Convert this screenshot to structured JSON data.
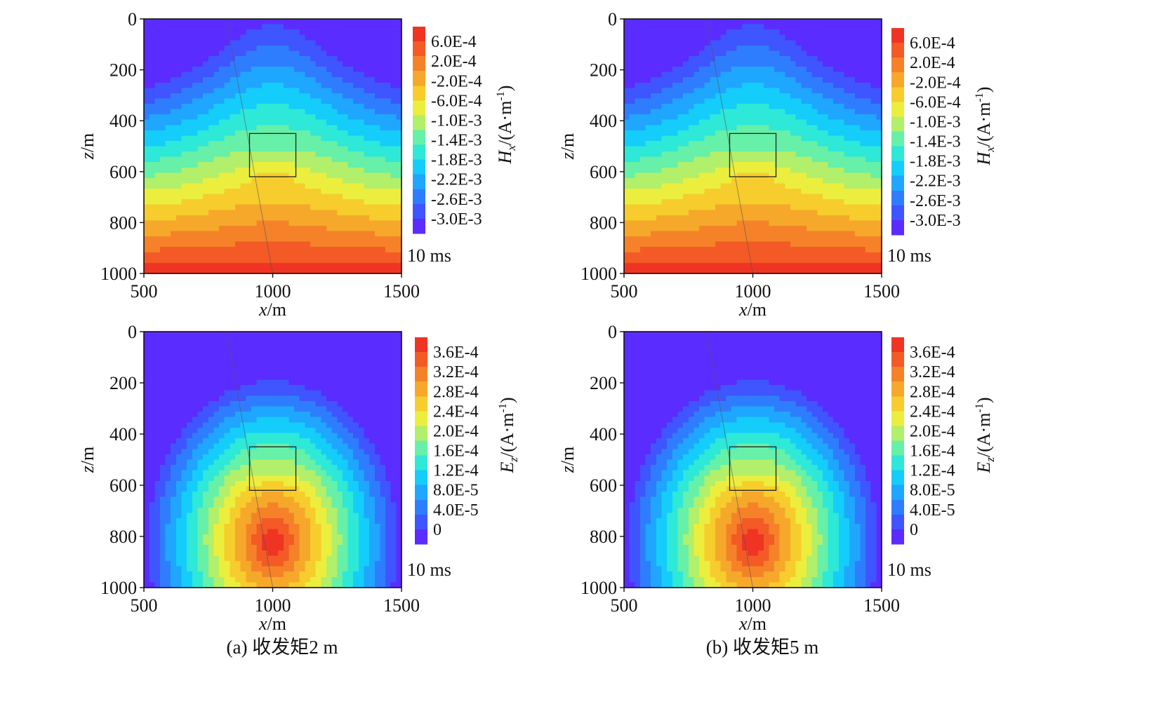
{
  "captions": [
    "(a) 收发矩2 m",
    "(b) 收发矩5 m"
  ],
  "chart_data": [
    {
      "type": "heatmap",
      "panel": "a-top",
      "component": "Hx",
      "field": "hx",
      "xlabel_var": "x",
      "xlabel_unit": "/m",
      "ylabel_var": "z",
      "ylabel_unit": "/m",
      "xlim": [
        500,
        1500
      ],
      "ylim": [
        0,
        1000
      ],
      "y_inverted": true,
      "xticks": [
        "500",
        "1000",
        "1500"
      ],
      "yticks": [
        "0",
        "200",
        "400",
        "600",
        "800",
        "1000"
      ],
      "time_label": "10 ms",
      "colorbar_label_var": "H",
      "colorbar_label_sub": "x",
      "colorbar_label_unit": "/(A·m",
      "colorbar_label_exp": "-1",
      "colorbar_label_close": ")",
      "colorbar_ticks": [
        "6.0E-4",
        "2.0E-4",
        "-2.0E-4",
        "-6.0E-4",
        "-1.0E-3",
        "-1.4E-3",
        "-1.8E-3",
        "-2.2E-3",
        "-2.6E-3",
        "-3.0E-3"
      ],
      "value_range": [
        -0.003,
        0.0006
      ],
      "anomaly_box": {
        "x": [
          910,
          1090
        ],
        "z": [
          450,
          620
        ]
      },
      "overlay_line": {
        "x1": 820,
        "z1": 0,
        "x2": 1000,
        "z2": 1000
      }
    },
    {
      "type": "heatmap",
      "panel": "b-top",
      "component": "Hx",
      "field": "hx",
      "xlabel_var": "x",
      "xlabel_unit": "/m",
      "ylabel_var": "z",
      "ylabel_unit": "/m",
      "xlim": [
        500,
        1500
      ],
      "ylim": [
        0,
        1000
      ],
      "y_inverted": true,
      "xticks": [
        "500",
        "1000",
        "1500"
      ],
      "yticks": [
        "0",
        "200",
        "400",
        "600",
        "800",
        "1000"
      ],
      "time_label": "10 ms",
      "colorbar_label_var": "H",
      "colorbar_label_sub": "x",
      "colorbar_label_unit": "/(A·m",
      "colorbar_label_exp": "-1",
      "colorbar_label_close": ")",
      "colorbar_ticks": [
        "6.0E-4",
        "2.0E-4",
        "-2.0E-4",
        "-6.0E-4",
        "-1.0E-3",
        "-1.4E-3",
        "-1.8E-3",
        "-2.2E-3",
        "-2.6E-3",
        "-3.0E-3"
      ],
      "value_range": [
        -0.003,
        0.0006
      ],
      "anomaly_box": {
        "x": [
          910,
          1090
        ],
        "z": [
          450,
          620
        ]
      },
      "overlay_line": {
        "x1": 820,
        "z1": 0,
        "x2": 1000,
        "z2": 1000
      }
    },
    {
      "type": "heatmap",
      "panel": "a-bottom",
      "component": "Ez",
      "field": "ez",
      "xlabel_var": "x",
      "xlabel_unit": "/m",
      "ylabel_var": "z",
      "ylabel_unit": "/m",
      "xlim": [
        500,
        1500
      ],
      "ylim": [
        0,
        1000
      ],
      "y_inverted": true,
      "xticks": [
        "500",
        "1000",
        "1500"
      ],
      "yticks": [
        "0",
        "200",
        "400",
        "600",
        "800",
        "1000"
      ],
      "time_label": "10 ms",
      "colorbar_label_var": "E",
      "colorbar_label_sub": "z",
      "colorbar_label_unit": "/(A·m",
      "colorbar_label_exp": "-1",
      "colorbar_label_close": ")",
      "colorbar_ticks": [
        "3.6E-4",
        "3.2E-4",
        "2.8E-4",
        "2.4E-4",
        "2.0E-4",
        "1.6E-4",
        "1.2E-4",
        "8.0E-5",
        "4.0E-5",
        "0"
      ],
      "value_range": [
        0,
        0.0004
      ],
      "anomaly_box": {
        "x": [
          910,
          1090
        ],
        "z": [
          450,
          620
        ]
      },
      "overlay_line": {
        "x1": 820,
        "z1": 0,
        "x2": 1000,
        "z2": 1000
      }
    },
    {
      "type": "heatmap",
      "panel": "b-bottom",
      "component": "Ez",
      "field": "ez",
      "xlabel_var": "x",
      "xlabel_unit": "/m",
      "ylabel_var": "z",
      "ylabel_unit": "/m",
      "xlim": [
        500,
        1500
      ],
      "ylim": [
        0,
        1000
      ],
      "y_inverted": true,
      "xticks": [
        "500",
        "1000",
        "1500"
      ],
      "yticks": [
        "0",
        "200",
        "400",
        "600",
        "800",
        "1000"
      ],
      "time_label": "10 ms",
      "colorbar_label_var": "E",
      "colorbar_label_sub": "z",
      "colorbar_label_unit": "/(A·m",
      "colorbar_label_exp": "-1",
      "colorbar_label_close": ")",
      "colorbar_ticks": [
        "3.6E-4",
        "3.2E-4",
        "2.8E-4",
        "2.4E-4",
        "2.0E-4",
        "1.6E-4",
        "1.2E-4",
        "8.0E-5",
        "4.0E-5",
        "0"
      ],
      "value_range": [
        0,
        0.0004
      ],
      "anomaly_box": {
        "x": [
          910,
          1090
        ],
        "z": [
          450,
          620
        ]
      },
      "overlay_line": {
        "x1": 820,
        "z1": 0,
        "x2": 1000,
        "z2": 1000
      }
    }
  ],
  "colormap": [
    "#5b2cff",
    "#3f55ff",
    "#2f7dff",
    "#1fa6ff",
    "#14cdfa",
    "#2ee8d8",
    "#66f0a8",
    "#b2ef6a",
    "#ecee3e",
    "#f6cd2c",
    "#f6a82a",
    "#f58228",
    "#f35a26",
    "#ef3424"
  ]
}
